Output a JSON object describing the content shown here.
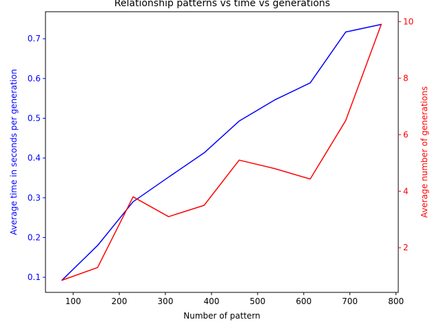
{
  "chart_data": {
    "type": "line",
    "title": "Relationship patterns vs time vs generations",
    "xlabel": "Number of pattern",
    "ylabel_left": "Average time in seconds per generation",
    "ylabel_right": "Average number of generations",
    "xlim": [
      40,
      805
    ],
    "ylim_left": [
      0.062,
      0.768
    ],
    "ylim_right": [
      0.42,
      10.35
    ],
    "x_ticks": [
      100,
      200,
      300,
      400,
      500,
      600,
      700,
      800
    ],
    "y_left_ticks": [
      0.1,
      0.2,
      0.3,
      0.4,
      0.5,
      0.6,
      0.7
    ],
    "y_right_ticks": [
      2,
      4,
      6,
      8,
      10
    ],
    "grid": false,
    "series": [
      {
        "axis": "left",
        "color": "#0000ff",
        "x": [
          76,
          153,
          230,
          307,
          384,
          460,
          537,
          614,
          691,
          768
        ],
        "y": [
          0.093,
          0.18,
          0.29,
          0.352,
          0.413,
          0.493,
          0.546,
          0.589,
          0.717,
          0.736
        ]
      },
      {
        "axis": "right",
        "color": "#ff0000",
        "x": [
          76,
          153,
          230,
          307,
          384,
          460,
          537,
          614,
          691,
          768
        ],
        "y": [
          0.85,
          1.3,
          3.8,
          3.1,
          3.5,
          5.1,
          4.8,
          4.43,
          6.5,
          9.9
        ]
      }
    ]
  }
}
